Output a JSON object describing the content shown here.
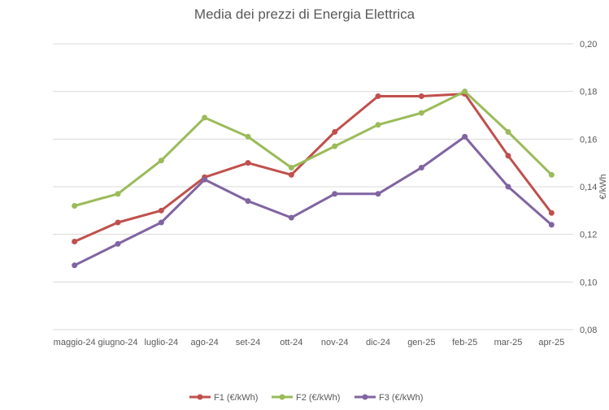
{
  "chart_data": {
    "type": "line",
    "title": "Media dei prezzi di Energia Elettrica",
    "xlabel": "",
    "ylabel": "€/kWh",
    "categories": [
      "maggio-24",
      "giugno-24",
      "luglio-24",
      "ago-24",
      "set-24",
      "ott-24",
      "nov-24",
      "dic-24",
      "gen-25",
      "feb-25",
      "mar-25",
      "apr-25"
    ],
    "ylim": [
      0.08,
      0.2
    ],
    "yticks": [
      0.08,
      0.1,
      0.12,
      0.14,
      0.16,
      0.18,
      0.2
    ],
    "ytick_labels": [
      "0,08",
      "0,10",
      "0,12",
      "0,14",
      "0,16",
      "0,18",
      "0,20"
    ],
    "y_axis_side": "right",
    "grid": true,
    "legend_position": "bottom",
    "series": [
      {
        "name": "F1 (€/kWh)",
        "color": "#C0504D",
        "values": [
          0.117,
          0.125,
          0.13,
          0.144,
          0.15,
          0.145,
          0.163,
          0.178,
          0.178,
          0.179,
          0.153,
          0.129
        ]
      },
      {
        "name": "F2 (€/kWh)",
        "color": "#9BBB59",
        "values": [
          0.132,
          0.137,
          0.151,
          0.169,
          0.161,
          0.148,
          0.157,
          0.166,
          0.171,
          0.18,
          0.163,
          0.145
        ]
      },
      {
        "name": "F3 (€/kWh)",
        "color": "#8064A2",
        "values": [
          0.107,
          0.116,
          0.125,
          0.143,
          0.134,
          0.127,
          0.137,
          0.137,
          0.148,
          0.161,
          0.14,
          0.124
        ]
      }
    ]
  }
}
